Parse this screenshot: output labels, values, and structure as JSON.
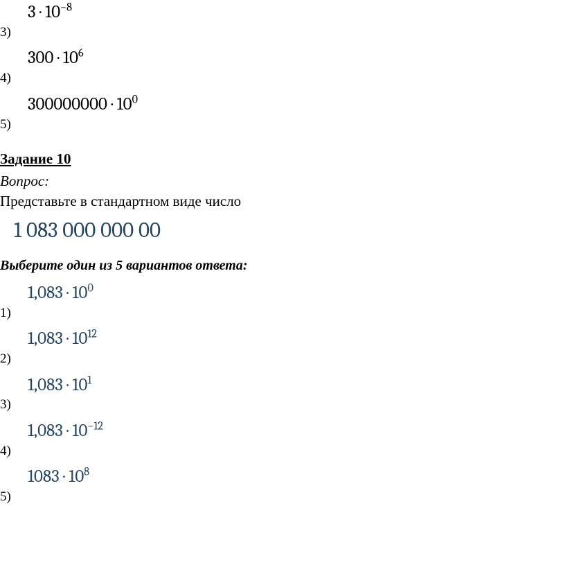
{
  "task9_options": [
    {
      "num": "3)",
      "base": "3",
      "exp": "−8",
      "color": "black"
    },
    {
      "num": "4)",
      "base": "300",
      "exp": "6",
      "color": "black"
    },
    {
      "num": "5)",
      "base": "300000000",
      "exp": "0",
      "color": "black"
    }
  ],
  "task10": {
    "title": "Задание 10",
    "question_label": "Вопрос:",
    "question_text": "Представьте в стандартном виде число",
    "number_display": "1 083 000 000 00",
    "choose_text": "Выберите один из 5 вариантов ответа:",
    "options": [
      {
        "num": "1)",
        "mantissa": "1,083",
        "exp": "0"
      },
      {
        "num": "2)",
        "mantissa": "1,083",
        "exp": "12"
      },
      {
        "num": "3)",
        "mantissa": "1,083",
        "exp": "1"
      },
      {
        "num": "4)",
        "mantissa": "1,083",
        "exp": "−12"
      },
      {
        "num": "5)",
        "mantissa": "1083",
        "exp": "8"
      }
    ]
  },
  "dot": " · ",
  "ten": "10"
}
